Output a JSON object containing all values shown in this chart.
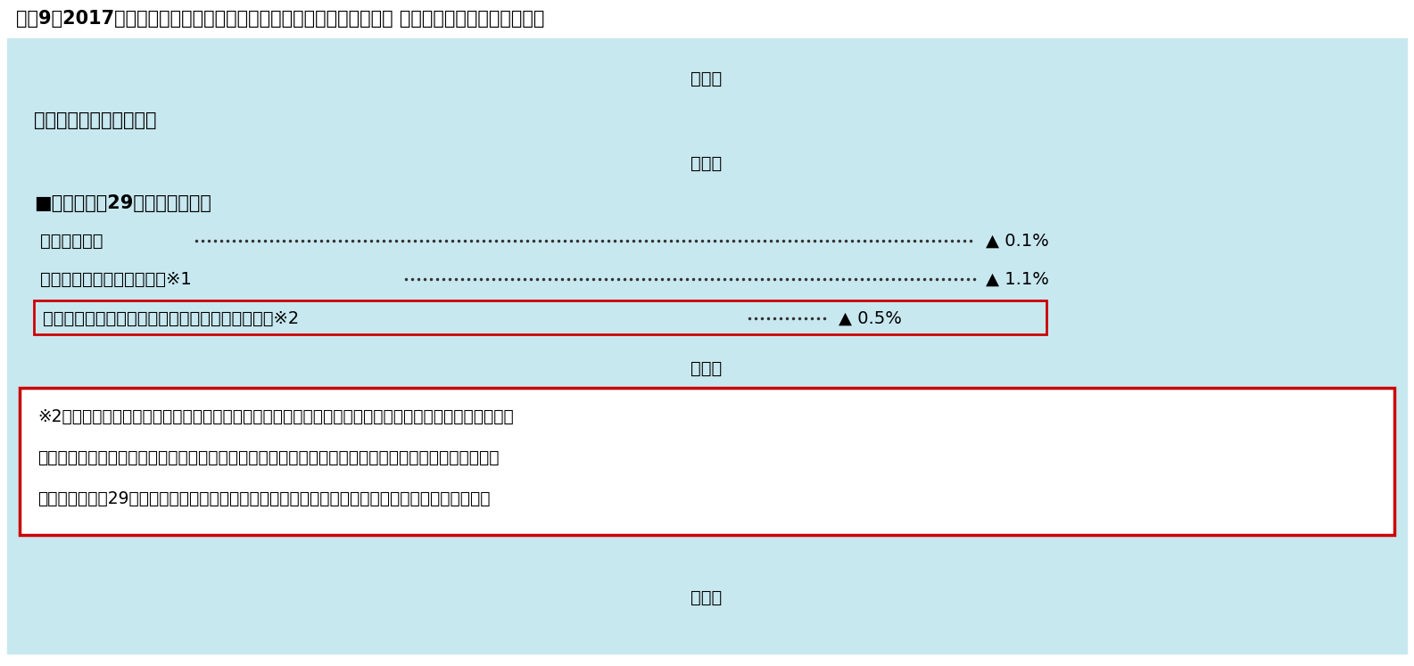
{
  "title": "図表9　2017年度の年金額改定に関する厚生労働省のプレスリリース （マクロ経済スライド関連）",
  "bg_color": "#c8e8f0",
  "white_bg": "#ffffff",
  "red_border": "#cc0000",
  "text_color": "#000000",
  "line1_label": "・物価変動率",
  "line1_value": "▲ 0.1%",
  "line2_label": "・名目手取り賃金変動率　※1",
  "line2_value": "▲ 1.1%",
  "line3_label": "・マクロ経済スライドによる「スライド調整率」※2",
  "line3_value": "▲ 0.5%",
  "section_header": "■参考：平成29年度の参考指標",
  "rule_header": "【年金額の改定ルール】",
  "ryaku": "（略）",
  "footnote_line1": "※2「マクロ経済スライド」とは、現役被保険者の減少と平均余命の伸びに基づいて、スライド調整率が",
  "footnote_line2": "　　設定され、その分を賃金や物価の変動がプラスとなる場合に改定率から控除するものです。したが",
  "footnote_line3": "　　って、平成29年度の年金額改定においては、マクロ経済スライドによる調整は行われません。",
  "main_font_size": 14,
  "title_font_size": 15,
  "header_font_size": 15,
  "bold_font_size": 15,
  "small_font_size": 13.5
}
